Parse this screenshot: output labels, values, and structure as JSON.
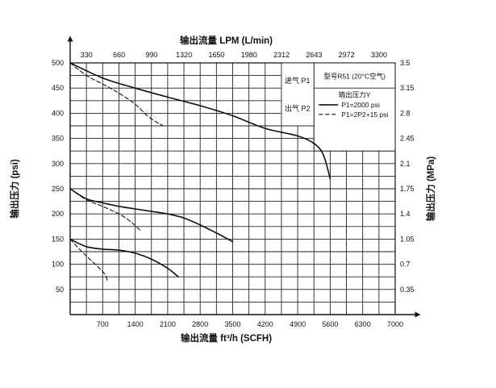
{
  "chart_data": {
    "type": "line",
    "title": "",
    "x_bottom": {
      "label": "输出流量 ft³/h (SCFH)",
      "unit": "ft³/h (SCFH)",
      "range": [
        0,
        7000
      ],
      "ticks": [
        700,
        1400,
        2100,
        2800,
        3500,
        4200,
        4900,
        5600,
        6300,
        7000
      ]
    },
    "x_top": {
      "label": "输出流量 LPM (L/min)",
      "ticks": [
        330,
        660,
        990,
        1320,
        1650,
        1980,
        2312,
        2643,
        2972,
        3300
      ]
    },
    "y_left": {
      "label": "输出压力 (psi)",
      "range": [
        0,
        500
      ],
      "ticks": [
        50,
        100,
        150,
        200,
        250,
        300,
        350,
        400,
        450,
        500
      ]
    },
    "y_right": {
      "label": "输出压力 (MPa)",
      "ticks": [
        "0.35",
        "0.7",
        "1.05",
        "1.4",
        "1.75",
        "2.1",
        "2.45",
        "2.8",
        "3.15",
        "3.5"
      ]
    },
    "grid": true,
    "legend": {
      "position": "top-right",
      "title": "输出压力Y",
      "model": "型号R51 (20°C空气)",
      "entries": [
        {
          "style": "solid",
          "label": "P1=2000 psi"
        },
        {
          "style": "dashed",
          "label": "P1=2P2+15 psi"
        }
      ]
    },
    "annotations": [
      "进气 P1",
      "出气 P2"
    ],
    "series": [
      {
        "style": "solid",
        "points": [
          [
            0,
            500
          ],
          [
            700,
            470
          ],
          [
            1400,
            450
          ],
          [
            2100,
            432
          ],
          [
            2800,
            415
          ],
          [
            3500,
            395
          ],
          [
            4200,
            370
          ],
          [
            4900,
            355
          ],
          [
            5250,
            340
          ],
          [
            5450,
            318
          ],
          [
            5600,
            270
          ]
        ]
      },
      {
        "style": "dashed",
        "points": [
          [
            0,
            500
          ],
          [
            350,
            475
          ],
          [
            700,
            458
          ],
          [
            1050,
            440
          ],
          [
            1400,
            418
          ],
          [
            1700,
            392
          ],
          [
            2000,
            375
          ]
        ]
      },
      {
        "style": "solid",
        "points": [
          [
            0,
            250
          ],
          [
            350,
            230
          ],
          [
            700,
            222
          ],
          [
            1050,
            215
          ],
          [
            1400,
            210
          ],
          [
            1750,
            205
          ],
          [
            2100,
            200
          ],
          [
            2450,
            192
          ],
          [
            2800,
            178
          ],
          [
            3150,
            162
          ],
          [
            3500,
            145
          ]
        ]
      },
      {
        "style": "dashed",
        "points": [
          [
            0,
            250
          ],
          [
            350,
            228
          ],
          [
            700,
            215
          ],
          [
            1050,
            200
          ],
          [
            1300,
            185
          ],
          [
            1500,
            168
          ]
        ]
      },
      {
        "style": "solid",
        "points": [
          [
            0,
            150
          ],
          [
            350,
            135
          ],
          [
            700,
            130
          ],
          [
            1050,
            128
          ],
          [
            1400,
            122
          ],
          [
            1750,
            110
          ],
          [
            2100,
            92
          ],
          [
            2330,
            75
          ]
        ]
      },
      {
        "style": "dashed",
        "points": [
          [
            0,
            150
          ],
          [
            200,
            130
          ],
          [
            400,
            112
          ],
          [
            600,
            95
          ],
          [
            750,
            80
          ],
          [
            800,
            68
          ]
        ]
      }
    ]
  }
}
